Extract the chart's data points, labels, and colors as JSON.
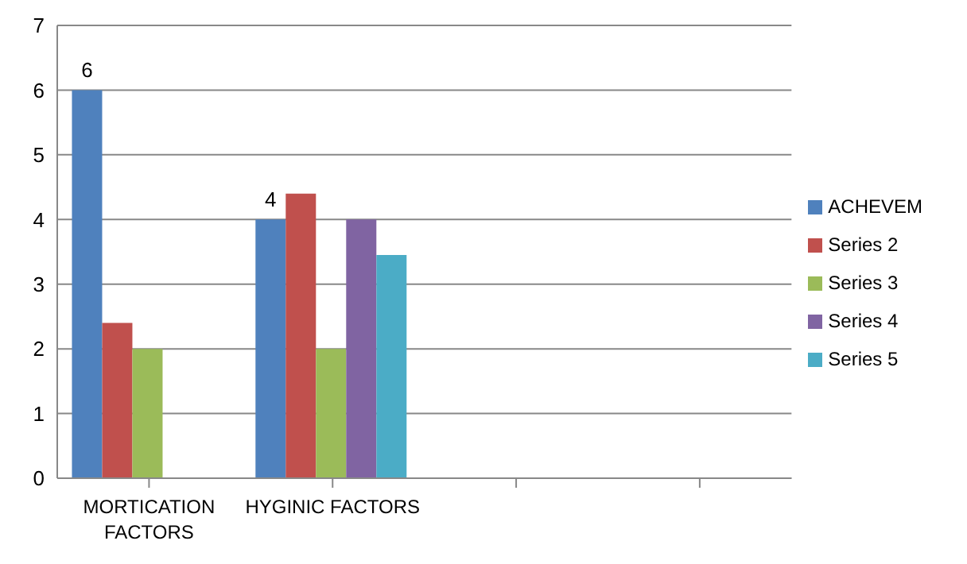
{
  "chart_data": {
    "type": "bar",
    "categories": [
      "MORTICATION FACTORS",
      "HYGINIC FACTORS",
      null,
      null
    ],
    "series": [
      {
        "name": "ACHEVEM",
        "color": "#4f81bd",
        "values": [
          6,
          4,
          null,
          null
        ],
        "value_labels": [
          "6",
          "4",
          null,
          null
        ]
      },
      {
        "name": "Series 2",
        "color": "#c0504d",
        "values": [
          2.4,
          4.4,
          null,
          null
        ]
      },
      {
        "name": "Series 3",
        "color": "#9bbb59",
        "values": [
          2,
          2,
          null,
          null
        ]
      },
      {
        "name": "Series 4",
        "color": "#8064a2",
        "values": [
          null,
          4,
          null,
          null
        ]
      },
      {
        "name": "Series 5",
        "color": "#4bacc6",
        "values": [
          null,
          3.45,
          null,
          null
        ]
      }
    ],
    "ylim": [
      0,
      7
    ],
    "yticks": [
      0,
      1,
      2,
      3,
      4,
      5,
      6,
      7
    ],
    "grid": "y",
    "legend": "right"
  }
}
